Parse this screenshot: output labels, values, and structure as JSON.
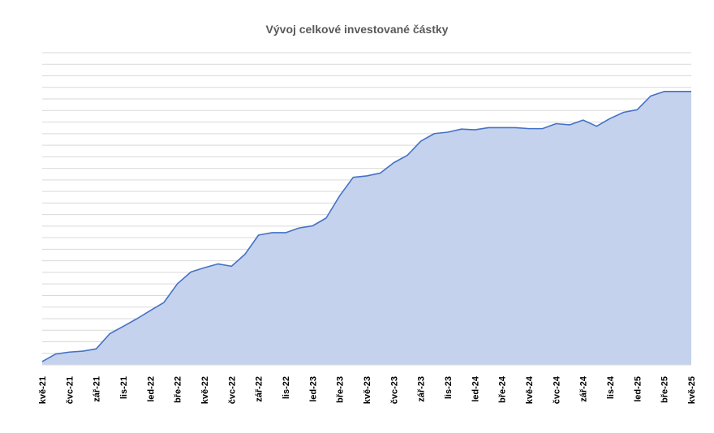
{
  "chart_data": {
    "type": "area",
    "title": "Vývoj celkové investované částky",
    "xlabel": "",
    "ylabel": "",
    "grid": true,
    "legend": "none",
    "colors": {
      "line": "#4472c4",
      "fill": "#c5d2ee",
      "grid": "#d9d9d9"
    },
    "x_tick_labels": [
      "kvě-21",
      "čvc-21",
      "zář-21",
      "lis-21",
      "led-22",
      "bře-22",
      "kvě-22",
      "čvc-22",
      "zář-22",
      "lis-22",
      "led-23",
      "bře-23",
      "kvě-23",
      "čvc-23",
      "zář-23",
      "lis-23",
      "led-24",
      "bře-24",
      "kvě-24",
      "čvc-24",
      "zář-24",
      "lis-24",
      "led-25",
      "bře-25",
      "kvě-25"
    ],
    "series": [
      {
        "x": [
          "kvě-21",
          "čer-21",
          "čvc-21",
          "srp-21",
          "zář-21",
          "říj-21",
          "lis-21",
          "pro-21",
          "led-22",
          "úno-22",
          "bře-22",
          "dub-22",
          "kvě-22",
          "čer-22",
          "čvc-22",
          "srp-22",
          "zář-22",
          "říj-22",
          "lis-22",
          "pro-22",
          "led-23",
          "úno-23",
          "bře-23",
          "dub-23",
          "kvě-23",
          "čer-23",
          "čvc-23",
          "srp-23",
          "zář-23",
          "říj-23",
          "lis-23",
          "pro-23",
          "led-24",
          "úno-24",
          "bře-24",
          "dub-24",
          "kvě-24",
          "čer-24",
          "čvc-24",
          "srp-24",
          "zář-24",
          "říj-24",
          "lis-24",
          "pro-24",
          "led-25",
          "úno-25",
          "bře-25",
          "dub-25",
          "kvě-25"
        ],
        "values": [
          1.4,
          4.6,
          5.4,
          5.8,
          6.8,
          13.2,
          16.3,
          19.5,
          23.0,
          26.4,
          34.3,
          39.3,
          41.1,
          42.7,
          41.7,
          46.8,
          54.9,
          55.9,
          55.9,
          57.9,
          58.8,
          62.1,
          71.5,
          79.3,
          79.9,
          81.1,
          85.5,
          88.6,
          94.6,
          97.8,
          98.4,
          99.7,
          99.4,
          100.3,
          100.3,
          100.3,
          99.9,
          99.9,
          102.0,
          101.5,
          103.5,
          100.9,
          104.2,
          106.8,
          107.9,
          113.7,
          115.6,
          115.6,
          115.6
        ]
      }
    ],
    "ylim": [
      0,
      132
    ],
    "y_gridlines": 27
  }
}
